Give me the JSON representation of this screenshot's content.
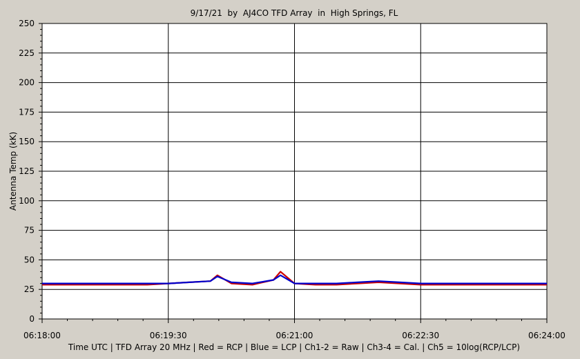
{
  "chart_data": {
    "type": "line",
    "title": "9/17/21  by  AJ4CO TFD Array  in  High Springs, FL",
    "ylabel": "Antenna Temp (kK)",
    "xlabel": "Time UTC | TFD Array 20 MHz | Red = RCP | Blue = LCP | Ch1-2 = Raw | Ch3-4 = Cal. | Ch5 = 10log(RCP/LCP)",
    "ylim": [
      0,
      250
    ],
    "xlim": [
      "06:18:00",
      "06:24:00"
    ],
    "yticks": [
      0,
      25,
      50,
      75,
      100,
      125,
      150,
      175,
      200,
      225,
      250
    ],
    "xticks": [
      "06:18:00",
      "06:19:30",
      "06:21:00",
      "06:22:30",
      "06:24:00"
    ],
    "grid": true,
    "colors": {
      "plot_background": "#ffffff",
      "frame_background": "#d4d0c8"
    },
    "series": [
      {
        "name": "RCP",
        "color": "#cc0000",
        "x": [
          "06:18:00",
          "06:18:15",
          "06:18:30",
          "06:18:45",
          "06:19:00",
          "06:19:15",
          "06:19:30",
          "06:19:45",
          "06:20:00",
          "06:20:05",
          "06:20:15",
          "06:20:30",
          "06:20:45",
          "06:20:50",
          "06:21:00",
          "06:21:15",
          "06:21:30",
          "06:21:45",
          "06:22:00",
          "06:22:15",
          "06:22:30",
          "06:22:45",
          "06:23:00",
          "06:23:15",
          "06:23:30",
          "06:23:45",
          "06:24:00"
        ],
        "values": [
          29,
          29,
          29,
          29,
          29,
          29,
          30,
          31,
          32,
          37,
          30,
          29,
          33,
          40,
          30,
          29,
          29,
          30,
          31,
          30,
          29,
          29,
          29,
          29,
          29,
          29,
          29
        ]
      },
      {
        "name": "LCP",
        "color": "#0000cc",
        "x": [
          "06:18:00",
          "06:18:15",
          "06:18:30",
          "06:18:45",
          "06:19:00",
          "06:19:15",
          "06:19:30",
          "06:19:45",
          "06:20:00",
          "06:20:05",
          "06:20:15",
          "06:20:30",
          "06:20:45",
          "06:20:50",
          "06:21:00",
          "06:21:15",
          "06:21:30",
          "06:21:45",
          "06:22:00",
          "06:22:15",
          "06:22:30",
          "06:22:45",
          "06:23:00",
          "06:23:15",
          "06:23:30",
          "06:23:45",
          "06:24:00"
        ],
        "values": [
          30,
          30,
          30,
          30,
          30,
          30,
          30,
          31,
          32,
          36,
          31,
          30,
          33,
          37,
          30,
          30,
          30,
          31,
          32,
          31,
          30,
          30,
          30,
          30,
          30,
          30,
          30
        ]
      }
    ]
  }
}
